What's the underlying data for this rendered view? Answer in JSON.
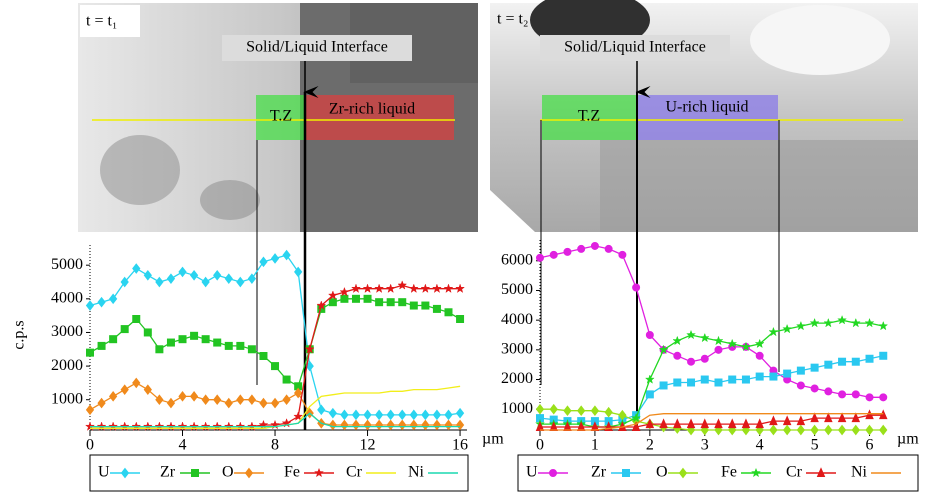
{
  "chart_data": [
    {
      "type": "line",
      "ylabel": "c.p.s",
      "xlabel": "µm",
      "annotations": {
        "time": "t = t₁",
        "interface": "Solid/Liquid Interface",
        "zone": "T.Z",
        "liquid": "Zr-rich liquid"
      },
      "xlim": [
        0,
        16.3
      ],
      "ylim": [
        100,
        5600
      ],
      "xticks": [
        0,
        4,
        8,
        12,
        16
      ],
      "yticks": [
        1000,
        2000,
        3000,
        4000,
        5000
      ],
      "x": [
        0,
        0.5,
        1,
        1.5,
        2,
        2.5,
        3,
        3.5,
        4,
        4.5,
        5,
        5.5,
        6,
        6.5,
        7,
        7.5,
        8,
        8.5,
        9,
        9.5,
        10,
        10.5,
        11,
        11.5,
        12,
        12.5,
        13,
        13.5,
        14,
        14.5,
        15,
        15.5,
        16
      ],
      "series": [
        {
          "name": "U",
          "color": "#2ad4f0",
          "marker": "diamond",
          "values": [
            3800,
            3900,
            4000,
            4500,
            4900,
            4700,
            4500,
            4600,
            4800,
            4700,
            4500,
            4700,
            4600,
            4500,
            4600,
            5100,
            5200,
            5300,
            4800,
            2000,
            700,
            600,
            550,
            550,
            550,
            550,
            550,
            550,
            550,
            550,
            550,
            550,
            600
          ]
        },
        {
          "name": "Zr",
          "color": "#22c422",
          "marker": "square",
          "values": [
            2400,
            2600,
            2800,
            3100,
            3400,
            3000,
            2500,
            2700,
            2800,
            2900,
            2800,
            2700,
            2600,
            2600,
            2500,
            2300,
            2000,
            1600,
            1400,
            2500,
            3700,
            3900,
            4000,
            4000,
            4000,
            3900,
            3900,
            3900,
            3800,
            3800,
            3700,
            3600,
            3400
          ]
        },
        {
          "name": "O",
          "color": "#f08a1c",
          "marker": "diamond",
          "values": [
            700,
            900,
            1100,
            1300,
            1500,
            1300,
            1000,
            900,
            1100,
            1100,
            1000,
            1000,
            900,
            1000,
            1000,
            900,
            900,
            1000,
            1200,
            600,
            300,
            250,
            250,
            250,
            250,
            250,
            250,
            250,
            250,
            250,
            250,
            250,
            250
          ]
        },
        {
          "name": "Fe",
          "color": "#e01818",
          "marker": "star",
          "values": [
            200,
            200,
            200,
            200,
            200,
            200,
            200,
            200,
            200,
            200,
            200,
            200,
            200,
            200,
            200,
            250,
            250,
            300,
            500,
            2500,
            3800,
            4100,
            4200,
            4300,
            4300,
            4300,
            4300,
            4400,
            4300,
            4300,
            4300,
            4300,
            4300
          ]
        },
        {
          "name": "Cr",
          "color": "#f2ee1a",
          "marker": "none",
          "values": [
            150,
            150,
            150,
            150,
            150,
            150,
            150,
            150,
            150,
            150,
            150,
            150,
            150,
            150,
            150,
            150,
            200,
            250,
            300,
            800,
            1100,
            1150,
            1200,
            1200,
            1200,
            1200,
            1250,
            1250,
            1300,
            1300,
            1300,
            1350,
            1400
          ]
        },
        {
          "name": "Ni",
          "color": "#1ad8b0",
          "marker": "none",
          "values": [
            200,
            200,
            200,
            200,
            200,
            200,
            200,
            200,
            200,
            200,
            200,
            200,
            200,
            200,
            200,
            200,
            200,
            250,
            300,
            600,
            300,
            200,
            200,
            200,
            200,
            200,
            200,
            200,
            200,
            200,
            200,
            200,
            200
          ]
        }
      ]
    },
    {
      "type": "line",
      "xlabel": "µm",
      "annotations": {
        "time": "t = t₂",
        "interface": "Solid/Liquid Interface",
        "zone": "T.Z",
        "liquid": "U-rich liquid"
      },
      "xlim": [
        0,
        6.3
      ],
      "ylim": [
        300,
        6700
      ],
      "xticks": [
        0,
        1,
        2,
        3,
        4,
        5,
        6
      ],
      "yticks": [
        1000,
        2000,
        3000,
        4000,
        5000,
        6000
      ],
      "x": [
        0,
        0.25,
        0.5,
        0.75,
        1,
        1.25,
        1.5,
        1.75,
        2,
        2.25,
        2.5,
        2.75,
        3,
        3.25,
        3.5,
        3.75,
        4,
        4.25,
        4.5,
        4.75,
        5,
        5.25,
        5.5,
        5.75,
        6,
        6.25
      ],
      "series": [
        {
          "name": "U",
          "color": "#e020e0",
          "marker": "circle",
          "values": [
            6100,
            6200,
            6300,
            6400,
            6500,
            6400,
            6200,
            5100,
            3500,
            3000,
            2800,
            2600,
            2700,
            3000,
            3100,
            3100,
            2800,
            2300,
            2000,
            1800,
            1700,
            1600,
            1500,
            1500,
            1400,
            1400
          ]
        },
        {
          "name": "Zr",
          "color": "#2ac8f0",
          "marker": "square",
          "values": [
            700,
            650,
            600,
            600,
            600,
            600,
            650,
            800,
            1500,
            1800,
            1900,
            1900,
            2000,
            1900,
            2000,
            2000,
            2100,
            2100,
            2200,
            2300,
            2400,
            2500,
            2600,
            2600,
            2700,
            2800
          ]
        },
        {
          "name": "O",
          "color": "#9ae01a",
          "marker": "diamond",
          "values": [
            1000,
            1000,
            950,
            950,
            950,
            900,
            800,
            600,
            500,
            400,
            350,
            300,
            300,
            300,
            300,
            300,
            300,
            300,
            300,
            300,
            300,
            300,
            300,
            300,
            300,
            300
          ]
        },
        {
          "name": "Fe",
          "color": "#22d822",
          "marker": "star",
          "values": [
            500,
            500,
            500,
            500,
            400,
            400,
            500,
            700,
            2000,
            3000,
            3300,
            3500,
            3400,
            3300,
            3200,
            3100,
            3200,
            3600,
            3700,
            3800,
            3900,
            3900,
            4000,
            3900,
            3900,
            3800
          ]
        },
        {
          "name": "Cr",
          "color": "#e01818",
          "marker": "triangle",
          "values": [
            400,
            400,
            400,
            400,
            400,
            400,
            400,
            400,
            500,
            500,
            500,
            500,
            500,
            500,
            500,
            500,
            500,
            600,
            600,
            600,
            700,
            700,
            700,
            700,
            800,
            800
          ]
        },
        {
          "name": "Ni",
          "color": "#f08a1c",
          "marker": "none",
          "values": [
            300,
            300,
            300,
            300,
            300,
            350,
            400,
            500,
            800,
            850,
            850,
            850,
            850,
            850,
            850,
            850,
            850,
            850,
            850,
            850,
            850,
            850,
            850,
            850,
            850,
            850
          ]
        }
      ]
    }
  ]
}
